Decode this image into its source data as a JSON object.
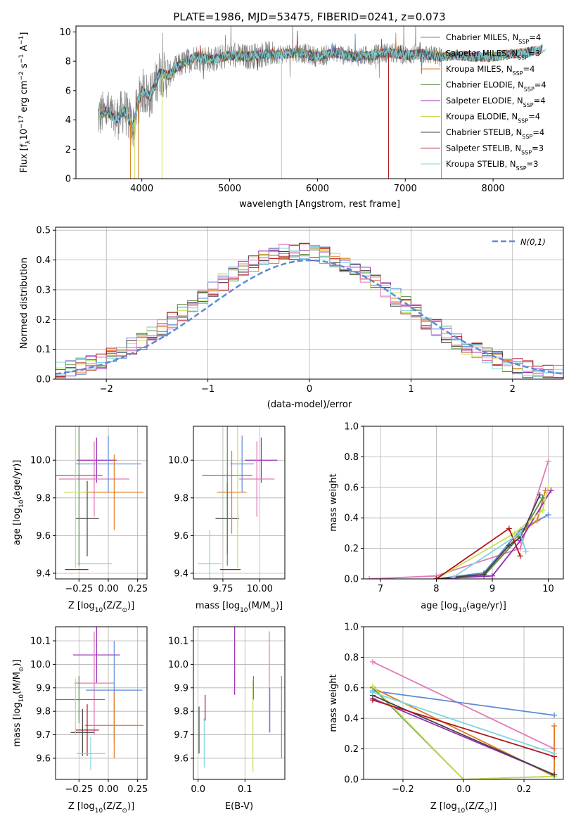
{
  "figure": {
    "title": "PLATE=1986, MJD=53475, FIBERID=0241, z=0.073"
  },
  "models": [
    {
      "name": "Chabrier MILES, N_SSP=4",
      "label_main": "Chabrier MILES, N",
      "label_sub": "SSP",
      "label_tail": "=4",
      "color": "#808080"
    },
    {
      "name": "Salpeter MILES, N_SSP=3",
      "label_main": "Salpeter MILES, N",
      "label_sub": "SSP",
      "label_tail": "=3",
      "color": "#5b8ad6"
    },
    {
      "name": "Kroupa MILES, N_SSP=4",
      "label_main": "Kroupa MILES, N",
      "label_sub": "SSP",
      "label_tail": "=4",
      "color": "#e07b20"
    },
    {
      "name": "Chabrier ELODIE, N_SSP=4",
      "label_main": "Chabrier ELODIE, N",
      "label_sub": "SSP",
      "label_tail": "=4",
      "color": "#5a8a4a"
    },
    {
      "name": "Salpeter ELODIE, N_SSP=4",
      "label_main": "Salpeter ELODIE, N",
      "label_sub": "SSP",
      "label_tail": "=4",
      "color": "#9a2bb8"
    },
    {
      "name": "Kroupa ELODIE, N_SSP=4",
      "label_main": "Kroupa ELODIE, N",
      "label_sub": "SSP",
      "label_tail": "=4",
      "color": "#c8e05a"
    },
    {
      "name": "Chabrier STELIB, N_SSP=4",
      "label_main": "Chabrier STELIB, N",
      "label_sub": "SSP",
      "label_tail": "=4",
      "color": "#444444"
    },
    {
      "name": "Salpeter STELIB, N_SSP=3",
      "label_main": "Salpeter STELIB, N",
      "label_sub": "SSP",
      "label_tail": "=3",
      "color": "#b01818"
    },
    {
      "name": "Kroupa STELIB, N_SSP=3",
      "label_main": "Kroupa STELIB, N",
      "label_sub": "SSP",
      "label_tail": "=3",
      "color": "#7fd6e0"
    }
  ],
  "extra_color_pink": "#e07ab8",
  "chart_data": [
    {
      "id": "spectrum",
      "type": "line",
      "xlabel": "wavelength [Angstrom, rest frame]",
      "ylabel_main": "Flux [f",
      "ylabel_sub": "λ",
      "ylabel_mid": "10",
      "ylabel_sup1": "−17",
      "ylabel_tail": " erg cm",
      "ylabel_sup2": "−2",
      "ylabel_tail2": " s",
      "ylabel_sup3": "−1",
      "ylabel_tail3": " A",
      "ylabel_sup4": "−1",
      "ylabel_end": "]",
      "xlim": [
        3250,
        8800
      ],
      "ylim": [
        0,
        10.4
      ],
      "xticks": [
        4000,
        5000,
        6000,
        7000,
        8000
      ],
      "yticks": [
        0,
        2,
        4,
        6,
        8,
        10
      ],
      "continuum": {
        "x": [
          3500,
          3600,
          3700,
          3800,
          3900,
          3950,
          4000,
          4100,
          4200,
          4300,
          4400,
          4600,
          4800,
          5000,
          5200,
          5400,
          5600,
          5800,
          6000,
          6200,
          6400,
          6600,
          6800,
          7000,
          7200,
          7400,
          7600,
          7800,
          8000,
          8200,
          8400,
          8600
        ],
        "y": [
          4.2,
          4.6,
          4.0,
          4.7,
          3.5,
          5.0,
          6.0,
          5.6,
          7.2,
          7.0,
          7.6,
          8.3,
          8.1,
          8.4,
          8.3,
          8.5,
          8.5,
          8.6,
          8.3,
          8.6,
          8.3,
          8.4,
          8.6,
          8.4,
          8.5,
          8.3,
          8.4,
          8.3,
          8.3,
          8.5,
          8.6,
          8.9
        ]
      }
    },
    {
      "id": "residual-histogram",
      "type": "bar",
      "xlabel": "(data-model)/error",
      "ylabel": "Normed distribution",
      "xlim": [
        -2.5,
        2.5
      ],
      "ylim": [
        0,
        0.51
      ],
      "xticks": [
        -2,
        -1,
        0,
        1,
        2
      ],
      "yticks": [
        0.0,
        0.1,
        0.2,
        0.3,
        0.4,
        0.5
      ],
      "legend": "N(0,1)",
      "legend_placement": "top-right",
      "bin_width": 0.1
    },
    {
      "id": "age-vs-Z",
      "type": "scatter",
      "xlabel_main": "Z [log",
      "xlabel_sub": "10",
      "xlabel_tail": "(Z/Z",
      "xlabel_sub2": "⊙",
      "xlabel_end": ")]",
      "ylabel_main": "age  [log",
      "ylabel_sub": "10",
      "ylabel_tail": "(age/yr)]",
      "xlim": [
        -0.45,
        0.33
      ],
      "ylim": [
        9.37,
        10.18
      ],
      "xticks": [
        -0.25,
        0.0,
        0.25
      ],
      "xtick_labels": [
        "−0.25",
        "0.00",
        "0.25"
      ],
      "yticks": [
        9.4,
        9.6,
        9.8,
        10.0
      ],
      "points": [
        {
          "x": -0.1,
          "y": 10.0,
          "xerr": 0.17,
          "yerr": 0.12,
          "c": 4
        },
        {
          "x": -0.12,
          "y": 9.45,
          "xerr": 0.15,
          "yerr": 0.0,
          "c": 8
        },
        {
          "x": -0.27,
          "y": 9.42,
          "xerr": 0.1,
          "yerr": 0.0,
          "c": 7
        },
        {
          "x": -0.18,
          "y": 9.69,
          "xerr": 0.1,
          "yerr": 0.2,
          "c": 6
        },
        {
          "x": -0.12,
          "y": 9.9,
          "xerr": 0.3,
          "yerr": 0.2,
          "c": 9
        },
        {
          "x": 0.05,
          "y": 9.83,
          "xerr": 0.25,
          "yerr": 0.2,
          "c": 2
        },
        {
          "x": 0.0,
          "y": 9.98,
          "xerr": 0.28,
          "yerr": 0.15,
          "c": 1
        },
        {
          "x": -0.25,
          "y": 9.92,
          "xerr": 0.2,
          "yerr": 0.48,
          "c": 3
        },
        {
          "x": -0.28,
          "y": 9.83,
          "xerr": 0.1,
          "yerr": 0.4,
          "c": 5
        }
      ]
    },
    {
      "id": "age-vs-mass",
      "type": "scatter",
      "xlabel_main": "mass [log",
      "xlabel_sub": "10",
      "xlabel_tail": "(M/M",
      "xlabel_sub2": "⊙",
      "xlabel_end": ")]",
      "xlim": [
        9.55,
        10.17
      ],
      "ylim": [
        9.37,
        10.18
      ],
      "xticks": [
        9.75,
        10.0
      ],
      "xtick_labels": [
        "9.75",
        "10.00"
      ],
      "yticks": [
        9.4,
        9.6,
        9.8,
        10.0
      ],
      "points": [
        {
          "x": 10.01,
          "y": 10.0,
          "xerr": 0.11,
          "yerr": 0.12,
          "c": 4
        },
        {
          "x": 9.66,
          "y": 9.45,
          "xerr": 0.08,
          "yerr": 0.18,
          "c": 8
        },
        {
          "x": 9.8,
          "y": 9.42,
          "xerr": 0.07,
          "yerr": 0.0,
          "c": 7
        },
        {
          "x": 9.78,
          "y": 9.69,
          "xerr": 0.08,
          "yerr": 0.19,
          "c": 6
        },
        {
          "x": 9.98,
          "y": 9.9,
          "xerr": 0.12,
          "yerr": 0.2,
          "c": 9
        },
        {
          "x": 9.81,
          "y": 9.83,
          "xerr": 0.1,
          "yerr": 0.22,
          "c": 2
        },
        {
          "x": 9.88,
          "y": 9.98,
          "xerr": 0.08,
          "yerr": 0.15,
          "c": 1
        },
        {
          "x": 9.78,
          "y": 9.92,
          "xerr": 0.17,
          "yerr": 0.48,
          "c": 3
        },
        {
          "x": 9.85,
          "y": 9.83,
          "xerr": 0.0,
          "yerr": 0.4,
          "c": 5
        }
      ]
    },
    {
      "id": "mass-weight-vs-age",
      "type": "line",
      "xlabel_main": "age  [log",
      "xlabel_sub": "10",
      "xlabel_tail": "(age/yr)]",
      "ylabel": "mass weight",
      "xlim": [
        6.7,
        10.27
      ],
      "ylim": [
        0,
        1.0
      ],
      "xticks": [
        7,
        8,
        9,
        10
      ],
      "yticks": [
        0.0,
        0.2,
        0.4,
        0.6,
        0.8,
        1.0
      ],
      "series": [
        {
          "c": 9,
          "x": [
            6.8,
            8.0,
            9.5,
            10.0
          ],
          "y": [
            0.0,
            0.02,
            0.2,
            0.77
          ]
        },
        {
          "c": 1,
          "x": [
            8.0,
            8.85,
            9.5,
            10.0
          ],
          "y": [
            0.0,
            0.04,
            0.32,
            0.42
          ]
        },
        {
          "c": 2,
          "x": [
            8.0,
            8.85,
            9.5,
            9.8,
            9.95
          ],
          "y": [
            0.0,
            0.03,
            0.3,
            0.38,
            0.58
          ]
        },
        {
          "c": 3,
          "x": [
            8.0,
            8.85,
            9.5,
            9.9
          ],
          "y": [
            0.0,
            0.02,
            0.28,
            0.53
          ]
        },
        {
          "c": 4,
          "x": [
            8.0,
            9.0,
            9.5,
            10.05
          ],
          "y": [
            0.0,
            0.02,
            0.25,
            0.58
          ]
        },
        {
          "c": 5,
          "x": [
            8.0,
            9.4,
            9.9,
            10.0
          ],
          "y": [
            0.0,
            0.3,
            0.45,
            0.6
          ]
        },
        {
          "c": 6,
          "x": [
            8.0,
            8.85,
            9.3,
            9.5,
            9.85
          ],
          "y": [
            0.0,
            0.03,
            0.22,
            0.27,
            0.55
          ]
        },
        {
          "c": 7,
          "x": [
            8.0,
            9.3,
            9.5
          ],
          "y": [
            0.0,
            0.33,
            0.15
          ]
        },
        {
          "c": 8,
          "x": [
            8.3,
            9.5,
            9.6
          ],
          "y": [
            0.01,
            0.3,
            0.18
          ]
        }
      ]
    },
    {
      "id": "mass-vs-Z",
      "type": "scatter",
      "xlabel_main": "Z [log",
      "xlabel_sub": "10",
      "xlabel_tail": "(Z/Z",
      "xlabel_sub2": "⊙",
      "xlabel_end": ")]",
      "ylabel_main": "mass [log",
      "ylabel_sub": "10",
      "ylabel_tail": "(M/M",
      "ylabel_sub2": "⊙",
      "ylabel_end": ")]",
      "xlim": [
        -0.45,
        0.33
      ],
      "ylim": [
        9.51,
        10.16
      ],
      "xticks": [
        -0.25,
        0.0,
        0.25
      ],
      "xtick_labels": [
        "−0.25",
        "0.00",
        "0.25"
      ],
      "yticks": [
        9.6,
        9.7,
        9.8,
        9.9,
        10.0,
        10.1
      ],
      "points": [
        {
          "x": -0.1,
          "y": 10.04,
          "xerr": 0.2,
          "yerr": 0.12,
          "c": 4
        },
        {
          "x": -0.12,
          "y": 9.92,
          "xerr": 0.17,
          "yerr": 0.22,
          "c": 9
        },
        {
          "x": 0.05,
          "y": 9.89,
          "xerr": 0.24,
          "yerr": 0.21,
          "c": 1
        },
        {
          "x": -0.25,
          "y": 9.85,
          "xerr": 0.22,
          "yerr": 0.1,
          "c": 3
        },
        {
          "x": 0.05,
          "y": 9.74,
          "xerr": 0.25,
          "yerr": 0.14,
          "c": 2
        },
        {
          "x": -0.18,
          "y": 9.72,
          "xerr": 0.1,
          "yerr": 0.11,
          "c": 7
        },
        {
          "x": -0.22,
          "y": 9.71,
          "xerr": 0.1,
          "yerr": 0.1,
          "c": 6
        },
        {
          "x": -0.15,
          "y": 9.62,
          "xerr": 0.12,
          "yerr": 0.07,
          "c": 8
        },
        {
          "x": -0.28,
          "y": 9.82,
          "xerr": 0.0,
          "yerr": 0.12,
          "c": 5
        }
      ]
    },
    {
      "id": "mass-vs-EBV",
      "type": "scatter",
      "xlabel": "E(B-V)",
      "xlim": [
        -0.01,
        0.185
      ],
      "ylim": [
        9.51,
        10.16
      ],
      "xticks": [
        0.0,
        0.1
      ],
      "xtick_labels": [
        "0.0",
        "0.1"
      ],
      "yticks": [
        9.6,
        9.7,
        9.8,
        9.9,
        10.0,
        10.1
      ],
      "bars": [
        {
          "x": 0.002,
          "y0": 9.62,
          "y1": 9.82,
          "c": 6
        },
        {
          "x": 0.013,
          "y0": 9.56,
          "y1": 9.77,
          "c": 8
        },
        {
          "x": 0.015,
          "y0": 9.76,
          "y1": 9.87,
          "c": 7
        },
        {
          "x": 0.078,
          "y0": 9.87,
          "y1": 10.16,
          "c": 4
        },
        {
          "x": 0.117,
          "y0": 9.54,
          "y1": 9.93,
          "c": 5
        },
        {
          "x": 0.118,
          "y0": 9.85,
          "y1": 9.95,
          "c": 3
        },
        {
          "x": 0.152,
          "y0": 9.71,
          "y1": 10.14,
          "c": 9
        },
        {
          "x": 0.153,
          "y0": 9.71,
          "y1": 9.9,
          "c": 1
        },
        {
          "x": 0.178,
          "y0": 9.6,
          "y1": 9.95,
          "c": 2
        }
      ]
    },
    {
      "id": "mass-weight-vs-Z",
      "type": "line",
      "xlabel_main": "Z [log",
      "xlabel_sub": "10",
      "xlabel_tail": "(Z/Z",
      "xlabel_sub2": "⊙",
      "xlabel_end": ")]",
      "ylabel": "mass weight",
      "xlim": [
        -0.33,
        0.33
      ],
      "ylim": [
        0,
        1.0
      ],
      "xticks": [
        -0.2,
        0.0,
        0.2
      ],
      "xtick_labels": [
        "−0.2",
        "0.0",
        "0.2"
      ],
      "yticks": [
        0.0,
        0.2,
        0.4,
        0.6,
        0.8,
        1.0
      ],
      "series": [
        {
          "c": 9,
          "x": [
            -0.3,
            0.3
          ],
          "y": [
            0.77,
            0.2
          ]
        },
        {
          "c": 1,
          "x": [
            -0.3,
            0.3
          ],
          "y": [
            0.58,
            0.42
          ]
        },
        {
          "c": 2,
          "x": [
            -0.3,
            0.3,
            0.3
          ],
          "y": [
            0.6,
            0.02,
            0.35
          ]
        },
        {
          "c": 3,
          "x": [
            -0.3,
            0.0,
            0.3
          ],
          "y": [
            0.6,
            0.0,
            0.02
          ]
        },
        {
          "c": 4,
          "x": [
            -0.3,
            0.3
          ],
          "y": [
            0.53,
            0.03
          ]
        },
        {
          "c": 5,
          "x": [
            -0.3,
            0.0,
            0.3
          ],
          "y": [
            0.61,
            0.0,
            0.02
          ]
        },
        {
          "c": 6,
          "x": [
            -0.3,
            0.3
          ],
          "y": [
            0.55,
            0.03
          ]
        },
        {
          "c": 7,
          "x": [
            -0.3,
            0.3
          ],
          "y": [
            0.52,
            0.15
          ]
        },
        {
          "c": 8,
          "x": [
            -0.3,
            0.3
          ],
          "y": [
            0.57,
            0.17
          ]
        }
      ]
    }
  ]
}
